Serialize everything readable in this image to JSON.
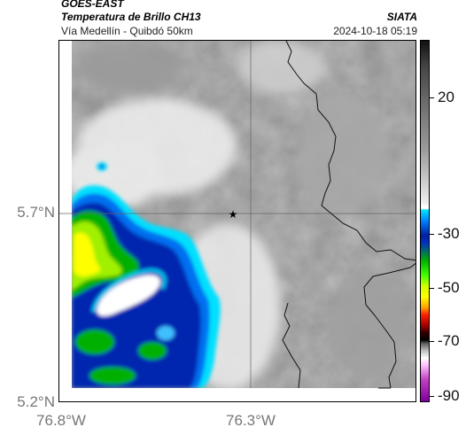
{
  "header": {
    "satellite": "GOES-EAST",
    "product": "Temperatura de Brillo CH13",
    "region": "Vía Medellín - Quibdó 50km",
    "organization": "SIATA",
    "timestamp": "2024-10-18 05:19"
  },
  "axes": {
    "lat_labels": [
      "5.7°N",
      "5.2°N"
    ],
    "lon_labels": [
      "76.8°W",
      "76.3°W"
    ]
  },
  "colorbar": {
    "labels": [
      "20",
      "-30",
      "-50",
      "-70",
      "-90"
    ]
  },
  "map": {
    "marker_icon": "star-icon",
    "colors": {
      "background": "#ffffff",
      "deep_convection": "#0030c0",
      "cyan_edge": "#00e0ff",
      "green": "#00b000",
      "yellow": "#ffff00",
      "border_line": "#000000"
    }
  }
}
